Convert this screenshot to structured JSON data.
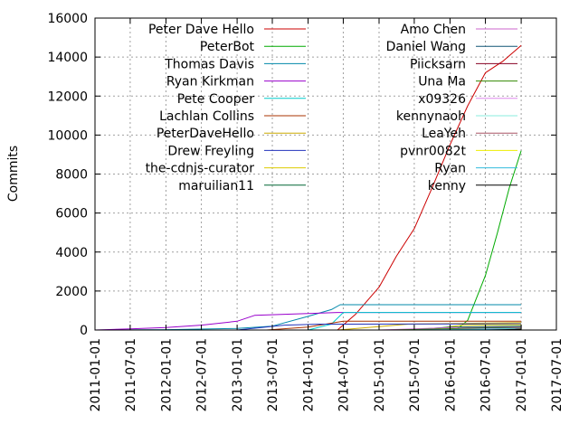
{
  "chart_data": {
    "type": "line",
    "title": "",
    "xlabel": "",
    "ylabel": "Commits",
    "ylim": [
      0,
      16000
    ],
    "xlim": [
      "2011-01-01",
      "2017-07-01"
    ],
    "y_ticks": [
      "0",
      "2000",
      "4000",
      "6000",
      "8000",
      "10000",
      "12000",
      "14000",
      "16000"
    ],
    "x_ticks": [
      "2011-01-01",
      "2011-07-01",
      "2012-01-01",
      "2012-07-01",
      "2013-01-01",
      "2013-07-01",
      "2014-01-01",
      "2014-07-01",
      "2015-01-01",
      "2015-07-01",
      "2016-01-01",
      "2016-07-01",
      "2017-01-01",
      "2017-07-01"
    ],
    "grid": true,
    "legend_position": "top, two columns",
    "series": [
      {
        "name": "Peter Dave Hello",
        "color": "#cc0000",
        "points": [
          [
            "2014-06-01",
            0
          ],
          [
            "2014-09-01",
            800
          ],
          [
            "2015-01-01",
            2200
          ],
          [
            "2015-04-01",
            3800
          ],
          [
            "2015-07-01",
            5200
          ],
          [
            "2015-10-01",
            7300
          ],
          [
            "2016-01-01",
            9500
          ],
          [
            "2016-04-01",
            11500
          ],
          [
            "2016-07-01",
            13200
          ],
          [
            "2016-10-01",
            13800
          ],
          [
            "2017-01-01",
            14600
          ]
        ]
      },
      {
        "name": "PeterBot",
        "color": "#00aa00",
        "points": [
          [
            "2016-02-01",
            0
          ],
          [
            "2016-04-01",
            500
          ],
          [
            "2016-07-01",
            2800
          ],
          [
            "2016-09-01",
            5000
          ],
          [
            "2016-11-01",
            7300
          ],
          [
            "2017-01-01",
            9200
          ]
        ]
      },
      {
        "name": "Thomas Davis",
        "color": "#0088aa",
        "points": [
          [
            "2011-01-01",
            0
          ],
          [
            "2012-01-01",
            20
          ],
          [
            "2013-01-01",
            80
          ],
          [
            "2013-07-01",
            200
          ],
          [
            "2014-01-01",
            700
          ],
          [
            "2014-05-01",
            1050
          ],
          [
            "2014-06-15",
            1300
          ],
          [
            "2017-01-01",
            1300
          ]
        ]
      },
      {
        "name": "Ryan Kirkman",
        "color": "#9900cc",
        "points": [
          [
            "2011-01-01",
            0
          ],
          [
            "2011-07-01",
            60
          ],
          [
            "2012-01-01",
            130
          ],
          [
            "2012-07-01",
            250
          ],
          [
            "2013-01-01",
            450
          ],
          [
            "2013-04-01",
            750
          ],
          [
            "2014-01-01",
            850
          ],
          [
            "2014-06-01",
            900
          ],
          [
            "2017-01-01",
            900
          ]
        ]
      },
      {
        "name": "Pete Cooper",
        "color": "#00cccc",
        "points": [
          [
            "2014-01-01",
            0
          ],
          [
            "2014-05-01",
            300
          ],
          [
            "2014-07-01",
            900
          ],
          [
            "2017-01-01",
            900
          ]
        ]
      },
      {
        "name": "Lachlan Collins",
        "color": "#aa3300",
        "points": [
          [
            "2013-06-01",
            0
          ],
          [
            "2014-01-01",
            150
          ],
          [
            "2014-07-01",
            450
          ],
          [
            "2017-01-01",
            450
          ]
        ]
      },
      {
        "name": "PeterDaveHello",
        "color": "#ccaa00",
        "points": [
          [
            "2014-06-01",
            0
          ],
          [
            "2015-06-01",
            300
          ],
          [
            "2017-01-01",
            380
          ]
        ]
      },
      {
        "name": "Drew Freyling",
        "color": "#2233bb",
        "points": [
          [
            "2013-01-01",
            0
          ],
          [
            "2013-09-01",
            250
          ],
          [
            "2014-03-01",
            300
          ],
          [
            "2017-01-01",
            320
          ]
        ]
      },
      {
        "name": "the-cdnjs-curator",
        "color": "#ddcc00",
        "points": [
          [
            "2015-09-01",
            0
          ],
          [
            "2016-03-01",
            250
          ],
          [
            "2017-01-01",
            280
          ]
        ]
      },
      {
        "name": "maruilian11",
        "color": "#006633",
        "points": [
          [
            "2015-06-01",
            0
          ],
          [
            "2016-01-01",
            150
          ],
          [
            "2017-01-01",
            200
          ]
        ]
      },
      {
        "name": "Amo Chen",
        "color": "#cc66cc",
        "points": [
          [
            "2015-01-01",
            0
          ],
          [
            "2016-01-01",
            120
          ],
          [
            "2017-01-01",
            150
          ]
        ]
      },
      {
        "name": "Daniel Wang",
        "color": "#115577",
        "points": [
          [
            "2015-06-01",
            0
          ],
          [
            "2016-06-01",
            100
          ],
          [
            "2017-01-01",
            130
          ]
        ]
      },
      {
        "name": "Piicksarn",
        "color": "#880022",
        "points": [
          [
            "2016-04-01",
            0
          ],
          [
            "2016-10-01",
            80
          ],
          [
            "2017-01-01",
            120
          ]
        ]
      },
      {
        "name": "Una Ma",
        "color": "#338800",
        "points": [
          [
            "2015-03-01",
            0
          ],
          [
            "2016-03-01",
            80
          ],
          [
            "2017-01-01",
            100
          ]
        ]
      },
      {
        "name": "x09326",
        "color": "#dd88ee",
        "points": [
          [
            "2015-10-01",
            0
          ],
          [
            "2016-08-01",
            70
          ],
          [
            "2017-01-01",
            90
          ]
        ]
      },
      {
        "name": "kennynaoh",
        "color": "#88eedd",
        "points": [
          [
            "2016-01-01",
            0
          ],
          [
            "2016-09-01",
            60
          ],
          [
            "2017-01-01",
            80
          ]
        ]
      },
      {
        "name": "LeaYeh",
        "color": "#aa5566",
        "points": [
          [
            "2016-05-01",
            0
          ],
          [
            "2016-11-01",
            50
          ],
          [
            "2017-01-01",
            70
          ]
        ]
      },
      {
        "name": "pvnr0082t",
        "color": "#eeee00",
        "points": [
          [
            "2016-06-01",
            0
          ],
          [
            "2016-12-01",
            40
          ],
          [
            "2017-01-01",
            60
          ]
        ]
      },
      {
        "name": "Ryan",
        "color": "#33bbdd",
        "points": [
          [
            "2015-05-01",
            0
          ],
          [
            "2016-05-01",
            30
          ],
          [
            "2017-01-01",
            50
          ]
        ]
      },
      {
        "name": "kenny",
        "color": "#000000",
        "points": [
          [
            "2016-07-01",
            0
          ],
          [
            "2016-12-01",
            30
          ],
          [
            "2017-01-01",
            40
          ]
        ]
      }
    ]
  }
}
